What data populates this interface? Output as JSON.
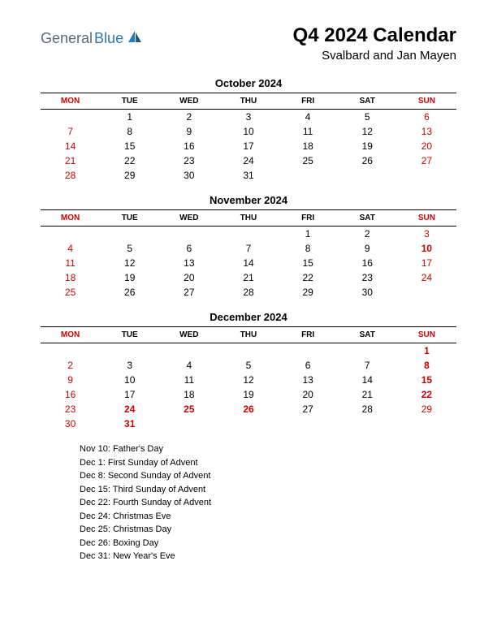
{
  "logo": {
    "text1": "General",
    "text2": "Blue"
  },
  "title": "Q4 2024 Calendar",
  "subtitle": "Svalbard and Jan Mayen",
  "day_headers": [
    "MON",
    "TUE",
    "WED",
    "THU",
    "FRI",
    "SAT",
    "SUN"
  ],
  "header_red_cols": [
    0,
    6
  ],
  "colors": {
    "red": "#cc0000",
    "black": "#000000",
    "logo_gray": "#5a6b7a",
    "logo_blue": "#2a7ab8",
    "background": "#ffffff"
  },
  "months": [
    {
      "name": "October 2024",
      "weeks": [
        [
          null,
          {
            "d": 1
          },
          {
            "d": 2
          },
          {
            "d": 3
          },
          {
            "d": 4
          },
          {
            "d": 5
          },
          {
            "d": 6,
            "s": "red"
          }
        ],
        [
          {
            "d": 7,
            "s": "red"
          },
          {
            "d": 8
          },
          {
            "d": 9
          },
          {
            "d": 10
          },
          {
            "d": 11
          },
          {
            "d": 12
          },
          {
            "d": 13,
            "s": "red"
          }
        ],
        [
          {
            "d": 14,
            "s": "red"
          },
          {
            "d": 15
          },
          {
            "d": 16
          },
          {
            "d": 17
          },
          {
            "d": 18
          },
          {
            "d": 19
          },
          {
            "d": 20,
            "s": "red"
          }
        ],
        [
          {
            "d": 21,
            "s": "red"
          },
          {
            "d": 22
          },
          {
            "d": 23
          },
          {
            "d": 24
          },
          {
            "d": 25
          },
          {
            "d": 26
          },
          {
            "d": 27,
            "s": "red"
          }
        ],
        [
          {
            "d": 28,
            "s": "red"
          },
          {
            "d": 29
          },
          {
            "d": 30
          },
          {
            "d": 31
          },
          null,
          null,
          null
        ]
      ]
    },
    {
      "name": "November 2024",
      "weeks": [
        [
          null,
          null,
          null,
          null,
          {
            "d": 1
          },
          {
            "d": 2
          },
          {
            "d": 3,
            "s": "red"
          }
        ],
        [
          {
            "d": 4,
            "s": "red"
          },
          {
            "d": 5
          },
          {
            "d": 6
          },
          {
            "d": 7
          },
          {
            "d": 8
          },
          {
            "d": 9
          },
          {
            "d": 10,
            "s": "redbold"
          }
        ],
        [
          {
            "d": 11,
            "s": "red"
          },
          {
            "d": 12
          },
          {
            "d": 13
          },
          {
            "d": 14
          },
          {
            "d": 15
          },
          {
            "d": 16
          },
          {
            "d": 17,
            "s": "red"
          }
        ],
        [
          {
            "d": 18,
            "s": "red"
          },
          {
            "d": 19
          },
          {
            "d": 20
          },
          {
            "d": 21
          },
          {
            "d": 22
          },
          {
            "d": 23
          },
          {
            "d": 24,
            "s": "red"
          }
        ],
        [
          {
            "d": 25,
            "s": "red"
          },
          {
            "d": 26
          },
          {
            "d": 27
          },
          {
            "d": 28
          },
          {
            "d": 29
          },
          {
            "d": 30
          },
          null
        ]
      ]
    },
    {
      "name": "December 2024",
      "weeks": [
        [
          null,
          null,
          null,
          null,
          null,
          null,
          {
            "d": 1,
            "s": "redbold"
          }
        ],
        [
          {
            "d": 2,
            "s": "red"
          },
          {
            "d": 3
          },
          {
            "d": 4
          },
          {
            "d": 5
          },
          {
            "d": 6
          },
          {
            "d": 7
          },
          {
            "d": 8,
            "s": "redbold"
          }
        ],
        [
          {
            "d": 9,
            "s": "red"
          },
          {
            "d": 10
          },
          {
            "d": 11
          },
          {
            "d": 12
          },
          {
            "d": 13
          },
          {
            "d": 14
          },
          {
            "d": 15,
            "s": "redbold"
          }
        ],
        [
          {
            "d": 16,
            "s": "red"
          },
          {
            "d": 17
          },
          {
            "d": 18
          },
          {
            "d": 19
          },
          {
            "d": 20
          },
          {
            "d": 21
          },
          {
            "d": 22,
            "s": "redbold"
          }
        ],
        [
          {
            "d": 23,
            "s": "red"
          },
          {
            "d": 24,
            "s": "redbold"
          },
          {
            "d": 25,
            "s": "redbold"
          },
          {
            "d": 26,
            "s": "redbold"
          },
          {
            "d": 27
          },
          {
            "d": 28
          },
          {
            "d": 29,
            "s": "red"
          }
        ],
        [
          {
            "d": 30,
            "s": "red"
          },
          {
            "d": 31,
            "s": "redbold"
          },
          null,
          null,
          null,
          null,
          null
        ]
      ]
    }
  ],
  "holidays": [
    "Nov 10: Father's Day",
    "Dec 1: First Sunday of Advent",
    "Dec 8: Second Sunday of Advent",
    "Dec 15: Third Sunday of Advent",
    "Dec 22: Fourth Sunday of Advent",
    "Dec 24: Christmas Eve",
    "Dec 25: Christmas Day",
    "Dec 26: Boxing Day",
    "Dec 31: New Year's Eve"
  ]
}
